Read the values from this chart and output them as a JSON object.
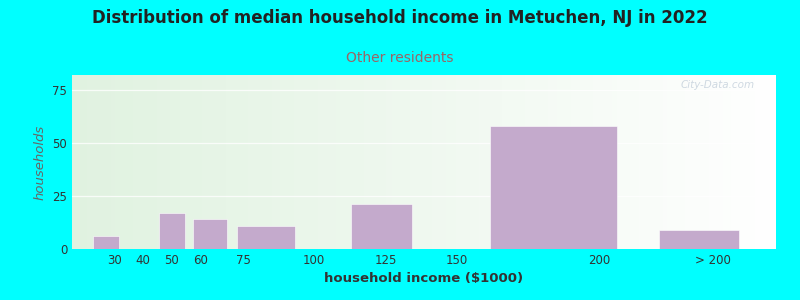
{
  "title": "Distribution of median household income in Metuchen, NJ in 2022",
  "subtitle": "Other residents",
  "xlabel": "household income ($1000)",
  "ylabel": "households",
  "background_outer": "#00FFFF",
  "bar_color": "#C4AACC",
  "title_fontsize": 12,
  "subtitle_fontsize": 10,
  "subtitle_color": "#996666",
  "ylabel_color": "#666666",
  "xlabel_color": "#333333",
  "title_color": "#222222",
  "ylim": [
    0,
    82
  ],
  "yticks": [
    0,
    25,
    50,
    75
  ],
  "watermark": "City-Data.com",
  "bar_data": [
    [
      22,
      10,
      6
    ],
    [
      45,
      10,
      17
    ],
    [
      57,
      13,
      14
    ],
    [
      72,
      22,
      11
    ],
    [
      112,
      23,
      21
    ],
    [
      160,
      48,
      58
    ],
    [
      220,
      30,
      9
    ]
  ],
  "x_tick_pos": [
    30,
    40,
    50,
    60,
    75,
    100,
    125,
    150,
    200,
    240
  ],
  "x_tick_labels": [
    "30",
    "40",
    "50",
    "60",
    "75",
    "100",
    "125",
    "150",
    "200",
    "> 200"
  ],
  "xlim": [
    15,
    262
  ]
}
